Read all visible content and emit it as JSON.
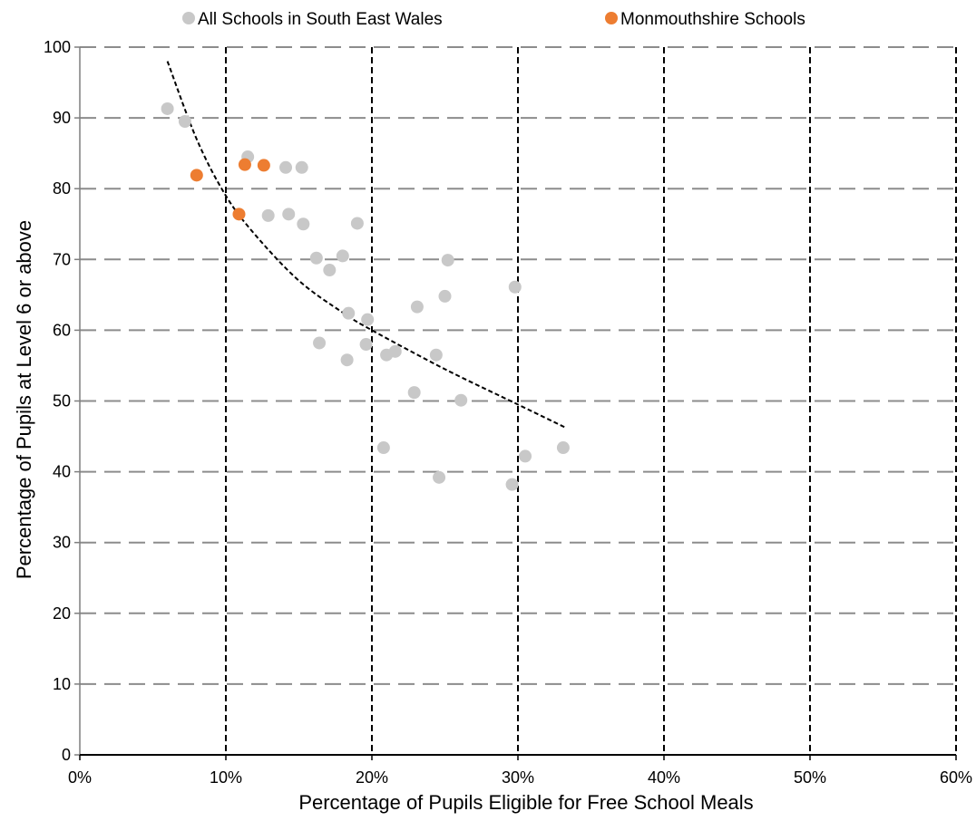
{
  "chart_data": {
    "type": "scatter",
    "xlabel": "Percentage of Pupils Eligible for Free School Meals",
    "ylabel": "Percentage of Pupils at Level 6 or above",
    "xlim": [
      0,
      0.6
    ],
    "ylim": [
      0,
      100
    ],
    "x_ticks": [
      0,
      0.1,
      0.2,
      0.3,
      0.4,
      0.5,
      0.6
    ],
    "x_tick_labels": [
      "0%",
      "10%",
      "20%",
      "30%",
      "40%",
      "50%",
      "60%"
    ],
    "y_ticks": [
      0,
      10,
      20,
      30,
      40,
      50,
      60,
      70,
      80,
      90,
      100
    ],
    "y_tick_labels": [
      "0",
      "10",
      "20",
      "30",
      "40",
      "50",
      "60",
      "70",
      "80",
      "90",
      "100"
    ],
    "grid": {
      "horizontal": "dashed grey",
      "vertical": "dashed black"
    },
    "legend_position": "top-center",
    "series": [
      {
        "name": "All Schools in South East Wales",
        "color": "#c8c8c8",
        "points": [
          [
            0.06,
            91.3
          ],
          [
            0.072,
            89.5
          ],
          [
            0.115,
            84.5
          ],
          [
            0.141,
            83.0
          ],
          [
            0.152,
            83.0
          ],
          [
            0.129,
            76.2
          ],
          [
            0.143,
            76.4
          ],
          [
            0.153,
            75.0
          ],
          [
            0.19,
            75.1
          ],
          [
            0.162,
            70.2
          ],
          [
            0.18,
            70.5
          ],
          [
            0.171,
            68.5
          ],
          [
            0.197,
            61.5
          ],
          [
            0.184,
            62.4
          ],
          [
            0.164,
            58.2
          ],
          [
            0.196,
            58.0
          ],
          [
            0.183,
            55.8
          ],
          [
            0.21,
            56.5
          ],
          [
            0.216,
            57.0
          ],
          [
            0.229,
            51.2
          ],
          [
            0.231,
            63.3
          ],
          [
            0.25,
            64.8
          ],
          [
            0.252,
            69.9
          ],
          [
            0.244,
            56.5
          ],
          [
            0.261,
            50.1
          ],
          [
            0.298,
            66.1
          ],
          [
            0.208,
            43.4
          ],
          [
            0.246,
            39.2
          ],
          [
            0.305,
            42.2
          ],
          [
            0.331,
            43.4
          ],
          [
            0.296,
            38.2
          ]
        ]
      },
      {
        "name": "Monmouthshire Schools",
        "color": "#ed7d31",
        "points": [
          [
            0.08,
            81.9
          ],
          [
            0.113,
            83.4
          ],
          [
            0.126,
            83.3
          ],
          [
            0.109,
            76.4
          ]
        ]
      }
    ],
    "trendline": {
      "style": "dashed black",
      "points": [
        [
          0.06,
          98
        ],
        [
          0.08,
          87
        ],
        [
          0.1,
          79
        ],
        [
          0.12,
          73.5
        ],
        [
          0.15,
          67
        ],
        [
          0.18,
          62.5
        ],
        [
          0.2,
          60
        ],
        [
          0.25,
          54.5
        ],
        [
          0.3,
          49.5
        ],
        [
          0.332,
          46.3
        ]
      ]
    }
  }
}
